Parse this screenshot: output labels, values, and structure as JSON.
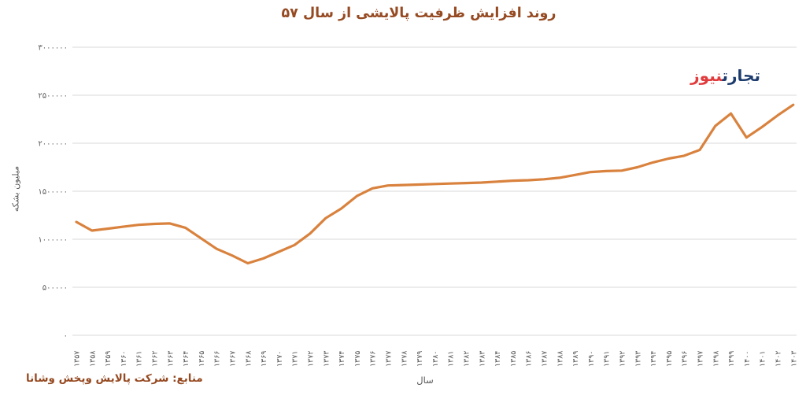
{
  "title": "روند افزایش ظرفیت پالایشی از سال ۵۷",
  "logo": {
    "word1": "تجارت",
    "word2": "نیوز"
  },
  "source": "منابع: شرکت پالایش وپخش وشانا",
  "colors": {
    "title_brown": "#964A22",
    "line_orange": "#D9823E",
    "axis_gray": "#595959",
    "grid_gray": "#D9D9D9",
    "logo_blue": "#1D3C6E",
    "logo_red": "#E13B3D"
  },
  "chart_data": {
    "type": "line",
    "title": "روند افزایش ظرفیت پالایشی از سال ۵۷",
    "xlabel": "سال",
    "ylabel": "میلیون بشکه",
    "ylim": [
      0,
      3000000
    ],
    "grid": true,
    "legend": "none",
    "y_ticks": [
      {
        "value": 0,
        "label": "۰"
      },
      {
        "value": 500000,
        "label": "۵۰۰۰۰۰"
      },
      {
        "value": 1000000,
        "label": "۱۰۰۰۰۰۰"
      },
      {
        "value": 1500000,
        "label": "۱۵۰۰۰۰۰"
      },
      {
        "value": 2000000,
        "label": "۲۰۰۰۰۰۰"
      },
      {
        "value": 2500000,
        "label": "۲۵۰۰۰۰۰"
      },
      {
        "value": 3000000,
        "label": "۳۰۰۰۰۰۰"
      }
    ],
    "categories": [
      1357,
      1358,
      1359,
      1360,
      1361,
      1362,
      1363,
      1364,
      1365,
      1366,
      1367,
      1368,
      1369,
      1370,
      1371,
      1372,
      1373,
      1374,
      1375,
      1376,
      1377,
      1378,
      1379,
      1380,
      1381,
      1382,
      1383,
      1384,
      1385,
      1386,
      1387,
      1388,
      1389,
      1390,
      1391,
      1392,
      1393,
      1394,
      1395,
      1396,
      1397,
      1398,
      1399,
      1400,
      1401,
      1402,
      1403
    ],
    "categories_fa": [
      "۱۳۵۷",
      "۱۳۵۸",
      "۱۳۵۹",
      "۱۳۶۰",
      "۱۳۶۱",
      "۱۳۶۲",
      "۱۳۶۳",
      "۱۳۶۴",
      "۱۳۶۵",
      "۱۳۶۶",
      "۱۳۶۷",
      "۱۳۶۸",
      "۱۳۶۹",
      "۱۳۷۰",
      "۱۳۷۱",
      "۱۳۷۲",
      "۱۳۷۳",
      "۱۳۷۴",
      "۱۳۷۵",
      "۱۳۷۶",
      "۱۳۷۷",
      "۱۳۷۸",
      "۱۳۷۹",
      "۱۳۸۰",
      "۱۳۸۱",
      "۱۳۸۲",
      "۱۳۸۳",
      "۱۳۸۴",
      "۱۳۸۵",
      "۱۳۸۶",
      "۱۳۸۷",
      "۱۳۸۸",
      "۱۳۸۹",
      "۱۳۹۰",
      "۱۳۹۱",
      "۱۳۹۲",
      "۱۳۹۳",
      "۱۳۹۴",
      "۱۳۹۵",
      "۱۳۹۶",
      "۱۳۹۷",
      "۱۳۹۸",
      "۱۳۹۹",
      "۱۴۰۰",
      "۱۴۰۱",
      "۱۴۰۲",
      "۱۴۰۳"
    ],
    "series": [
      {
        "color": "#D9823E",
        "values": [
          1180000,
          1090000,
          1110000,
          1130000,
          1150000,
          1160000,
          1165000,
          1120000,
          1010000,
          900000,
          830000,
          750000,
          800000,
          870000,
          940000,
          1060000,
          1220000,
          1320000,
          1450000,
          1530000,
          1560000,
          1565000,
          1570000,
          1575000,
          1580000,
          1585000,
          1590000,
          1600000,
          1610000,
          1615000,
          1625000,
          1640000,
          1670000,
          1700000,
          1710000,
          1715000,
          1750000,
          1800000,
          1840000,
          1870000,
          1930000,
          2180000,
          2310000,
          2060000,
          2170000,
          2290000,
          2400000
        ]
      }
    ]
  }
}
